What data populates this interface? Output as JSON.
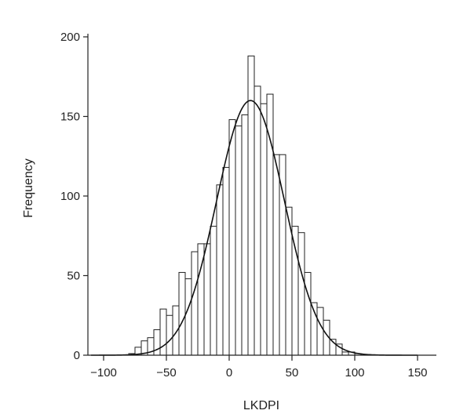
{
  "chart_data": {
    "type": "histogram",
    "title": "",
    "xlabel": "LKDPI",
    "ylabel": "Frequency",
    "xlim": [
      -110,
      160
    ],
    "ylim": [
      0,
      210
    ],
    "x_ticks": [
      -100,
      -50,
      0,
      50,
      100,
      150
    ],
    "x_tick_labels": [
      "−100",
      "−50",
      "0",
      "50",
      "100",
      "150"
    ],
    "y_ticks": [
      0,
      50,
      100,
      150,
      200
    ],
    "y_tick_labels": [
      "0",
      "50",
      "100",
      "150",
      "200"
    ],
    "bin_width": 5,
    "bins": [
      {
        "start": -80,
        "count": 1
      },
      {
        "start": -75,
        "count": 5
      },
      {
        "start": -70,
        "count": 9
      },
      {
        "start": -65,
        "count": 11
      },
      {
        "start": -60,
        "count": 16
      },
      {
        "start": -55,
        "count": 29
      },
      {
        "start": -50,
        "count": 25
      },
      {
        "start": -45,
        "count": 31
      },
      {
        "start": -40,
        "count": 52
      },
      {
        "start": -35,
        "count": 48
      },
      {
        "start": -30,
        "count": 65
      },
      {
        "start": -25,
        "count": 70
      },
      {
        "start": -20,
        "count": 70
      },
      {
        "start": -15,
        "count": 81
      },
      {
        "start": -10,
        "count": 107
      },
      {
        "start": -5,
        "count": 118
      },
      {
        "start": 0,
        "count": 148
      },
      {
        "start": 5,
        "count": 144
      },
      {
        "start": 10,
        "count": 151
      },
      {
        "start": 15,
        "count": 188
      },
      {
        "start": 20,
        "count": 169
      },
      {
        "start": 25,
        "count": 158
      },
      {
        "start": 30,
        "count": 164
      },
      {
        "start": 35,
        "count": 126
      },
      {
        "start": 40,
        "count": 126
      },
      {
        "start": 45,
        "count": 93
      },
      {
        "start": 50,
        "count": 81
      },
      {
        "start": 55,
        "count": 77
      },
      {
        "start": 60,
        "count": 52
      },
      {
        "start": 65,
        "count": 33
      },
      {
        "start": 70,
        "count": 30
      },
      {
        "start": 75,
        "count": 22
      },
      {
        "start": 80,
        "count": 10
      },
      {
        "start": 85,
        "count": 7
      },
      {
        "start": 90,
        "count": 2
      },
      {
        "start": 95,
        "count": 2
      },
      {
        "start": 100,
        "count": 1
      }
    ],
    "fit_curve": {
      "type": "normal",
      "mean": 17,
      "sd": 27,
      "peak": 160
    },
    "grid": false
  }
}
